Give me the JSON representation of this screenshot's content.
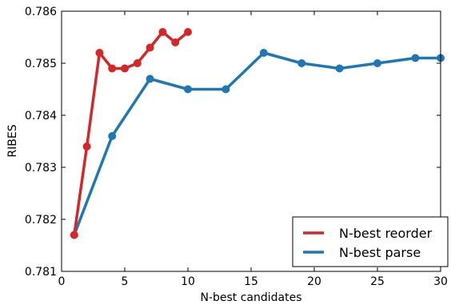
{
  "chart_data": {
    "type": "line",
    "title": "",
    "xlabel": "N-best candidates",
    "ylabel": "RIBES",
    "xlim": [
      0,
      30
    ],
    "ylim": [
      0.781,
      0.786
    ],
    "x_ticks": [
      0,
      5,
      10,
      15,
      20,
      25,
      30
    ],
    "y_ticks": [
      0.781,
      0.782,
      0.783,
      0.784,
      0.785,
      0.786
    ],
    "x_tick_labels": [
      "0",
      "5",
      "10",
      "15",
      "20",
      "25",
      "30"
    ],
    "y_tick_labels": [
      "0.781",
      "0.782",
      "0.783",
      "0.784",
      "0.785",
      "0.786"
    ],
    "grid": false,
    "legend_position": "bottom-right",
    "series": [
      {
        "name": "N-best reorder",
        "color": "#d62728",
        "x": [
          1,
          2,
          3,
          4,
          5,
          6,
          7,
          8,
          9,
          10
        ],
        "y": [
          0.7817,
          0.7834,
          0.7852,
          0.7849,
          0.7849,
          0.785,
          0.7853,
          0.7856,
          0.7854,
          0.7856
        ]
      },
      {
        "name": "N-best parse",
        "color": "#1f77b4",
        "x": [
          1,
          4,
          7,
          10,
          13,
          16,
          19,
          22,
          25,
          28,
          30
        ],
        "y": [
          0.7817,
          0.7836,
          0.7847,
          0.7845,
          0.7845,
          0.7852,
          0.785,
          0.7849,
          0.785,
          0.7851,
          0.7851
        ]
      }
    ]
  }
}
